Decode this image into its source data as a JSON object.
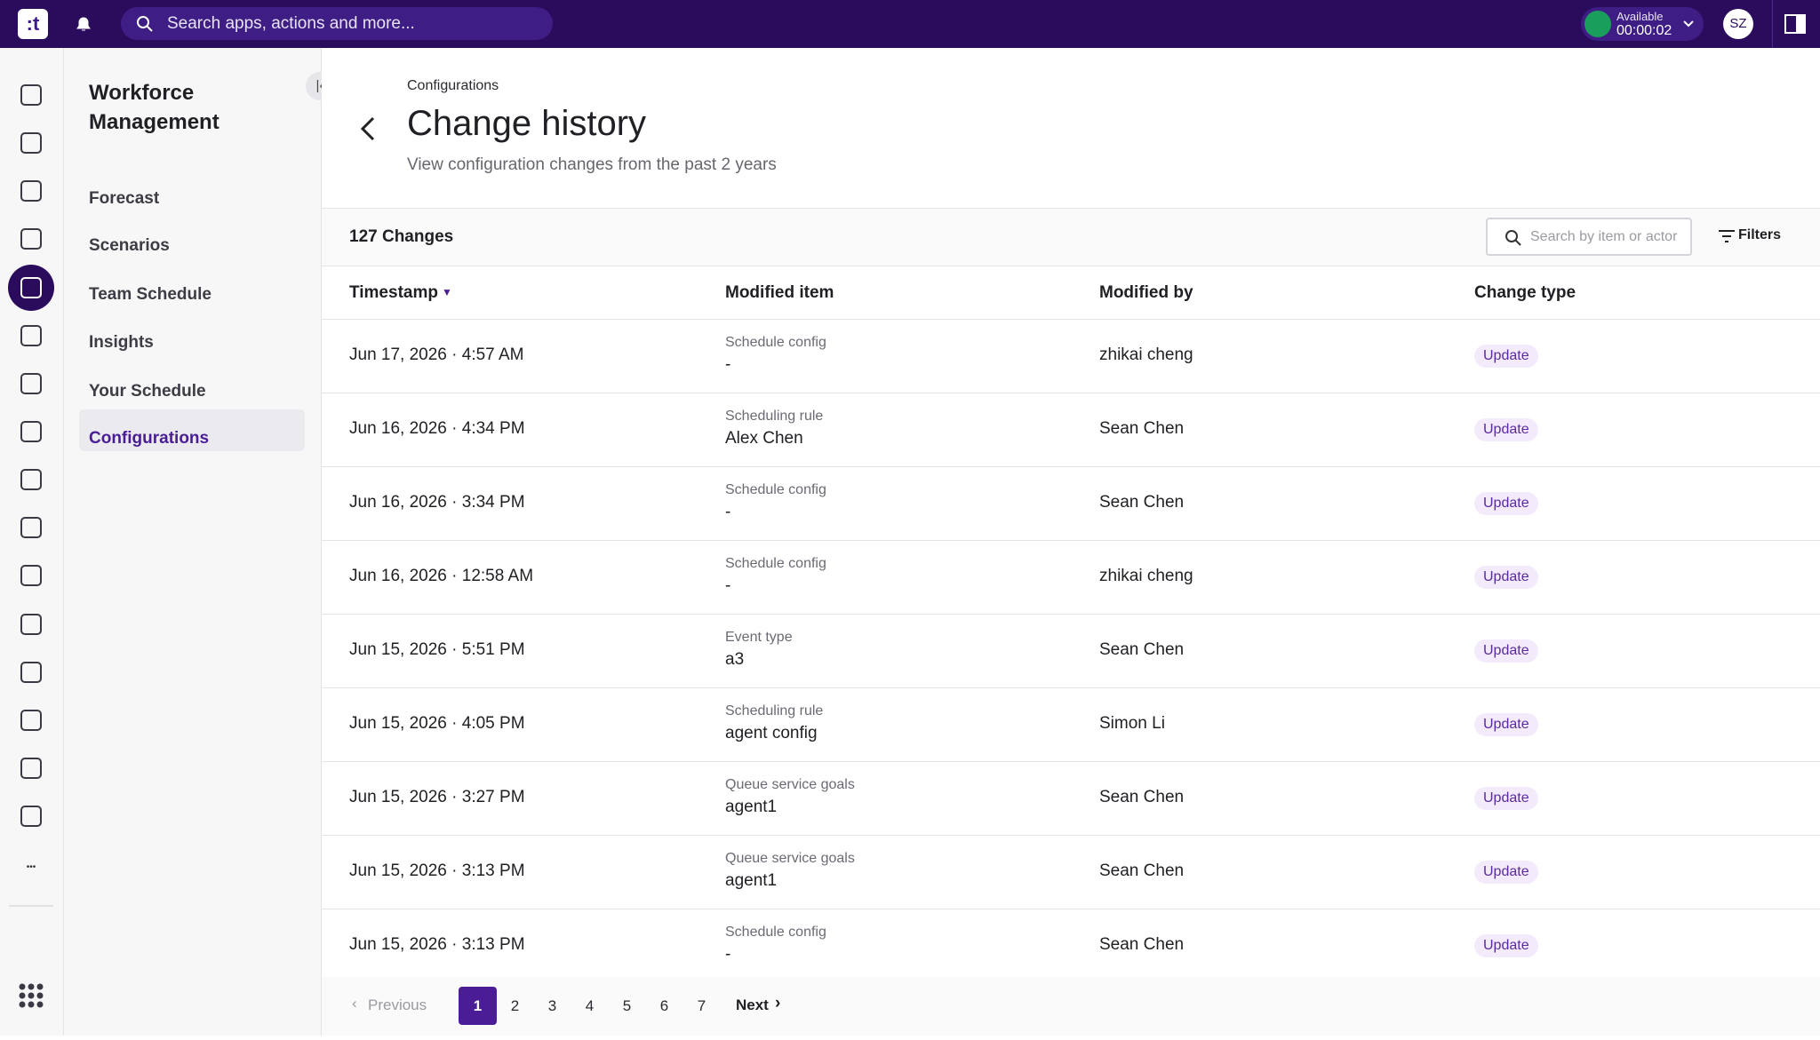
{
  "topbar": {
    "search_placeholder": "Search apps, actions and more...",
    "status": "Available",
    "timer": "00:00:02",
    "avatar": "SZ"
  },
  "sidebar": {
    "title": "Workforce Management",
    "items": [
      "Forecast",
      "Scenarios",
      "Team Schedule",
      "Insights",
      "Your Schedule",
      "Configurations"
    ],
    "active": 5
  },
  "header": {
    "breadcrumb": "Configurations",
    "title": "Change history",
    "subtitle": "View configuration changes from the past 2 years"
  },
  "toolbar": {
    "count": "127 Changes",
    "search_placeholder": "Search by item or actor",
    "filters": "Filters"
  },
  "table": {
    "columns": [
      "Timestamp",
      "Modified item",
      "Modified by",
      "Change type"
    ],
    "rows": [
      [
        "Jun 17, 2026 · 4:57 AM",
        "Schedule config",
        "-",
        "zhikai cheng",
        "Update"
      ],
      [
        "Jun 16, 2026 · 4:34 PM",
        "Scheduling rule",
        "Alex Chen",
        "Sean Chen",
        "Update"
      ],
      [
        "Jun 16, 2026 · 3:34 PM",
        "Schedule config",
        "-",
        "Sean Chen",
        "Update"
      ],
      [
        "Jun 16, 2026 · 12:58 AM",
        "Schedule config",
        "-",
        "zhikai cheng",
        "Update"
      ],
      [
        "Jun 15, 2026 · 5:51 PM",
        "Event type",
        "a3",
        "Sean Chen",
        "Update"
      ],
      [
        "Jun 15, 2026 · 4:05 PM",
        "Scheduling rule",
        "agent config",
        "Simon Li",
        "Update"
      ],
      [
        "Jun 15, 2026 · 3:27 PM",
        "Queue service goals",
        "agent1",
        "Sean Chen",
        "Update"
      ],
      [
        "Jun 15, 2026 · 3:13 PM",
        "Queue service goals",
        "agent1",
        "Sean Chen",
        "Update"
      ],
      [
        "Jun 15, 2026 · 3:13 PM",
        "Schedule config",
        "-",
        "Sean Chen",
        "Update"
      ]
    ]
  },
  "pagination": {
    "previous": "Previous",
    "pages": [
      "1",
      "2",
      "3",
      "4",
      "5",
      "6",
      "7"
    ],
    "current": 0,
    "next": "Next"
  }
}
